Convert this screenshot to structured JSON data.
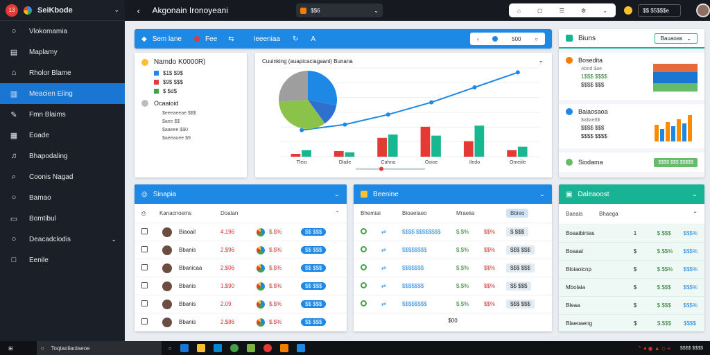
{
  "sidebar": {
    "badge": "13",
    "title": "SeiKbode",
    "items": [
      {
        "label": "Vlokomamia",
        "icon": "circle-icon"
      },
      {
        "label": "Maplamy",
        "icon": "building-icon"
      },
      {
        "label": "Rholor Blame",
        "icon": "home-icon"
      },
      {
        "label": "Meacien Eiing",
        "icon": "chart-icon",
        "active": true
      },
      {
        "label": "Fmn Blaims",
        "icon": "pencil-icon"
      },
      {
        "label": "Eoade",
        "icon": "grid-icon"
      },
      {
        "label": "Bhapodaling",
        "icon": "music-icon"
      },
      {
        "label": "Coonis Nagad",
        "icon": "search-icon"
      },
      {
        "label": "Bamao",
        "icon": "circle-icon"
      },
      {
        "label": "Bomtibul",
        "icon": "lock-icon"
      },
      {
        "label": "Deacadclodis",
        "icon": "circle-icon",
        "expandable": true
      },
      {
        "label": "Eenile",
        "icon": "square-icon"
      }
    ]
  },
  "topbar": {
    "title": "Akgonain Ironoyeani",
    "address": "$$6",
    "account": "$$ $5$$$e",
    "colors": {
      "accent": "#1e88e5",
      "teal": "#18b394",
      "dark": "#1b1f27"
    }
  },
  "toolbar_panel": {
    "title": "Sem lane",
    "link": "Fee",
    "link2": "Ieeeniaa",
    "page": "500"
  },
  "legend_panel": {
    "heading": "Namdo K0000R)",
    "items": [
      {
        "label": "$1$ $9$",
        "color": "#1e88e5"
      },
      {
        "label": "$9$ $$$",
        "color": "#e53935"
      },
      {
        "label": "$ $d$",
        "color": "#43a047"
      }
    ],
    "sub_heading": "Ocaaioid",
    "sub_items": [
      "$eeeaeeae $$$",
      "$aee $$",
      "$aaeee $$0",
      "$aeeaoee $9"
    ]
  },
  "chart_data": {
    "type": "bar",
    "title": "Cuuinking (auapicaciagaani) Bunana",
    "categories": [
      "Tleio",
      "Dlaile",
      "Cahria",
      "Ooioe",
      "Iledo",
      "Omeiile"
    ],
    "series": [
      {
        "values": [
          5,
          10,
          34,
          54,
          28,
          12
        ],
        "color": "#e53935"
      },
      {
        "values": [
          12,
          8,
          40,
          38,
          56,
          18
        ],
        "color": "#17b890"
      }
    ],
    "line": [
      48,
      58,
      76,
      98,
      125,
      152
    ],
    "ylim": [
      0,
      160
    ]
  },
  "right_panel": {
    "title": "Biuns",
    "button": "Bauaoas",
    "card1": {
      "title": "Bosedita",
      "sub": "Abod $ae",
      "v1": "1$$$ $$$$",
      "v2": "$$$$ $$$"
    },
    "card2": {
      "title": "Baiaosaoa",
      "sub": "$a$ae$$",
      "v1": "$$$$ $$$",
      "v2": "$$$$ $$$$"
    },
    "card3": {
      "title": "Siodama",
      "badge": "$$$$ $$$ $$$$$"
    }
  },
  "table1": {
    "title": "Sinapia",
    "headers": [
      "Kanacnoeins",
      "Doalan"
    ],
    "rows": [
      {
        "name": "Biaoail",
        "v": "4.196",
        "p": "$.$%",
        "chip": "$$ $$$"
      },
      {
        "name": "Bbanis",
        "v": "2.$96",
        "p": "$.$%",
        "chip": "$$ $$$"
      },
      {
        "name": "Bbanicaa",
        "v": "2.$06",
        "p": "$.$%",
        "chip": "$$ $$$"
      },
      {
        "name": "Bbanis",
        "v": "1.$90",
        "p": "$.$%",
        "chip": "$$ $$$"
      },
      {
        "name": "Bbanis",
        "v": "2.09",
        "p": "$.$%",
        "chip": "$$ $$$"
      },
      {
        "name": "Bbanis",
        "v": "2.$86",
        "p": "$.$%",
        "chip": "$$ $$$"
      }
    ]
  },
  "table2": {
    "title": "Beenine",
    "headers": [
      "Bhemiai",
      "Bioaelaeo",
      "Mraeiia",
      "Bbieo"
    ],
    "rows": [
      {
        "a": "$$$$ $$$$$$$$",
        "b": "$.$%",
        "c": "$$%",
        "d": "$ $$$"
      },
      {
        "a": "$$$$$$$$",
        "b": "$.$%",
        "c": "$$%",
        "d": "$$$ $$$"
      },
      {
        "a": "$$$$$$$",
        "b": "$.$%",
        "c": "$$%",
        "d": "$$$ $$$"
      },
      {
        "a": "$$$$$$$",
        "b": "$.$%",
        "c": "$$%",
        "d": "$$ $$$"
      },
      {
        "a": "$$$$$$$$",
        "b": "$.$%",
        "c": "$$%",
        "d": "$$$ $$$"
      }
    ],
    "footer": "$00"
  },
  "table3": {
    "title": "Daleaoost",
    "headers": [
      "Baeais",
      "Bhaega"
    ],
    "rows": [
      {
        "name": "Boaaibinias",
        "n": "1",
        "a": "$.$$$",
        "b": "$$$%"
      },
      {
        "name": "Boaaal",
        "n": "$",
        "a": "$.$$%",
        "b": "$$$%"
      },
      {
        "name": "Bloiaoicnp",
        "n": "$",
        "a": "$.$$%",
        "b": "$$$%"
      },
      {
        "name": "Mbolaia",
        "n": "$",
        "a": "$.$$$",
        "b": "$$$%"
      },
      {
        "name": "Bleaa",
        "n": "$",
        "a": "$.$$$",
        "b": "$$$%"
      },
      {
        "name": "Blaeoaeng",
        "n": "$",
        "a": "$.$$$",
        "b": "$$$$"
      }
    ]
  },
  "taskbar": {
    "search": "Toqtaoliaolaeoe",
    "clock": "$$$$ $$$$"
  }
}
